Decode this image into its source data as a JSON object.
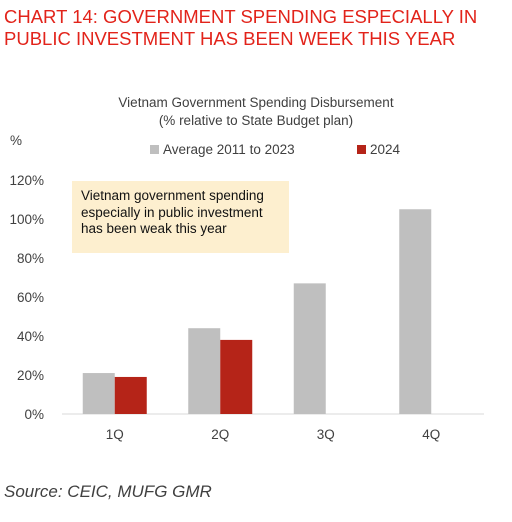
{
  "heading": {
    "line1": "CHART 14: GOVERNMENT SPENDING ESPECIALLY IN",
    "line2": "PUBLIC INVESTMENT HAS BEEN WEEK THIS YEAR"
  },
  "chart_data": {
    "type": "bar",
    "title": "Vietnam Government Spending Disbursement",
    "subtitle": "(% relative to State Budget plan)",
    "unit_label": "%",
    "categories": [
      "1Q",
      "2Q",
      "3Q",
      "4Q"
    ],
    "series": [
      {
        "name": "Average 2011 to 2023",
        "color": "#bfbfbf",
        "values": [
          21,
          44,
          67,
          105
        ]
      },
      {
        "name": "2024",
        "color": "#b52418",
        "values": [
          19,
          38,
          null,
          null
        ]
      }
    ],
    "ylim": [
      0,
      120
    ],
    "yticks": [
      0,
      20,
      40,
      60,
      80,
      100,
      120
    ],
    "ytick_labels": [
      "0%",
      "20%",
      "40%",
      "60%",
      "80%",
      "100%",
      "120%"
    ],
    "grid": false,
    "legend_position": "top",
    "annotation": "Vietnam government spending especially in public investment has been weak this year"
  },
  "source": "Source: CEIC, MUFG GMR"
}
